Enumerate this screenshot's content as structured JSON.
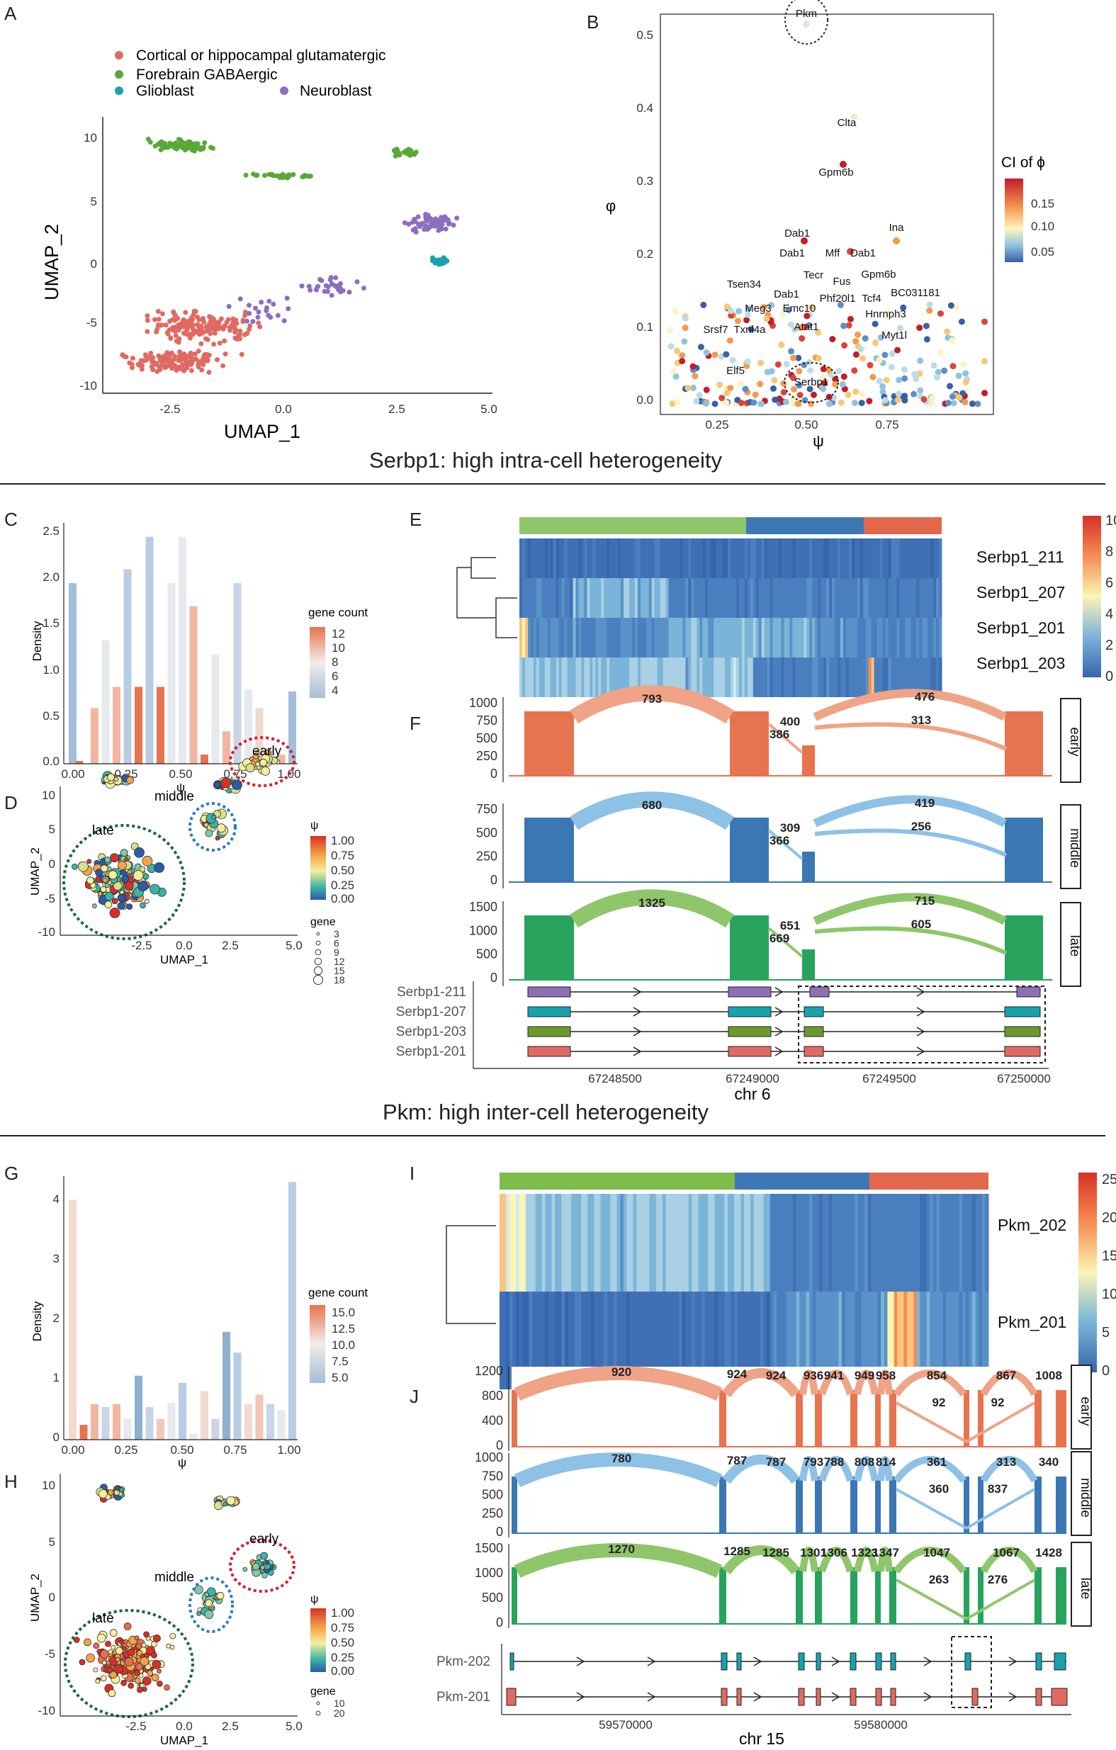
{
  "panels": {
    "A": {
      "letter": "A",
      "legend": [
        "Cortical or hippocampal glutamatergic",
        "Forebrain GABAergic",
        "Glioblast",
        "Neuroblast"
      ],
      "legend_colors": [
        "#e06a63",
        "#5aa838",
        "#17a3ae",
        "#8b6fbf"
      ],
      "xlabel": "UMAP_1",
      "ylabel": "UMAP_2",
      "xticks": [
        "-2.5",
        "0.0",
        "2.5",
        "5.0"
      ],
      "yticks": [
        "10",
        "5",
        "0",
        "-5",
        "-10"
      ]
    },
    "B": {
      "letter": "B",
      "xlabel": "ψ",
      "ylabel": "φ",
      "xticks": [
        "0.25",
        "0.50",
        "0.75"
      ],
      "yticks": [
        "0.5",
        "0.4",
        "0.3",
        "0.2",
        "0.1",
        "0.0"
      ],
      "legend_title": "CI of ϕ",
      "legend_ticks": [
        "0.15",
        "0.10",
        "0.05"
      ],
      "highlight": [
        "Pkm",
        "Serbp1"
      ],
      "labels": [
        "Clta",
        "Gpm6b",
        "Ina",
        "Dab1",
        "Mff",
        "Dab1",
        "Dab1",
        "Tecr",
        "Fus",
        "Gpm6b",
        "Tsen34",
        "BC031181",
        "Dab1",
        "Phf20l1",
        "Tcf4",
        "Meg3",
        "Emc10",
        "Hnrnph3",
        "Atat1",
        "Srsf7",
        "Txnl4a",
        "Myt1l",
        "Elf5"
      ]
    },
    "C": {
      "letter": "C",
      "xlabel": "ψ",
      "ylabel": "Density",
      "xticks": [
        "0.00",
        "0.25",
        "0.50",
        "0.75",
        "1.00"
      ],
      "yticks": [
        "2.5",
        "2.0",
        "1.5",
        "1.0",
        "0.5",
        "0.0"
      ],
      "legend_title": "gene count",
      "legend_ticks": [
        "12",
        "10",
        "8",
        "6",
        "4"
      ]
    },
    "D": {
      "letter": "D",
      "xlabel": "UMAP_1",
      "ylabel": "UMAP_2",
      "xticks": [
        "-2.5",
        "0.0",
        "2.5",
        "5.0"
      ],
      "yticks": [
        "10",
        "5",
        "0",
        "-5",
        "-10"
      ],
      "region_labels": [
        "early",
        "middle",
        "late"
      ],
      "psi_title": "ψ",
      "psi_ticks": [
        "1.00",
        "0.75",
        "0.50",
        "0.25",
        "0.00"
      ],
      "gene_title": "gene",
      "gene_sizes": [
        "3",
        "6",
        "9",
        "12",
        "15",
        "18"
      ]
    },
    "E": {
      "letter": "E",
      "rows": [
        "Serbp1_211",
        "Serbp1_207",
        "Serbp1_201",
        "Serbp1_203"
      ],
      "scale_ticks": [
        "10",
        "8",
        "6",
        "4",
        "2",
        "0"
      ]
    },
    "F": {
      "letter": "F",
      "facets": [
        {
          "label": "early",
          "yticks": [
            "1000",
            "750",
            "500",
            "250",
            "0"
          ],
          "nums": [
            "793",
            "400",
            "386",
            "476",
            "313"
          ]
        },
        {
          "label": "middle",
          "yticks": [
            "750",
            "500",
            "250",
            "0"
          ],
          "nums": [
            "680",
            "309",
            "366",
            "419",
            "256"
          ]
        },
        {
          "label": "late",
          "yticks": [
            "1500",
            "1000",
            "500",
            "0"
          ],
          "nums": [
            "1325",
            "651",
            "669",
            "715",
            "605"
          ]
        }
      ],
      "transcripts": [
        "Serbp1-211",
        "Serbp1-207",
        "Serbp1-203",
        "Serbp1-201"
      ],
      "xticks": [
        "67248500",
        "67249000",
        "67249500",
        "67250000"
      ],
      "xlabel": "chr 6"
    },
    "G": {
      "letter": "G",
      "xlabel": "ψ",
      "ylabel": "Density",
      "xticks": [
        "0.00",
        "0.25",
        "0.50",
        "0.75",
        "1.00"
      ],
      "yticks": [
        "4",
        "3",
        "2",
        "1",
        "0"
      ],
      "legend_title": "gene count",
      "legend_ticks": [
        "15.0",
        "12.5",
        "10.0",
        "7.5",
        "5.0"
      ]
    },
    "H": {
      "letter": "H",
      "xlabel": "UMAP_1",
      "ylabel": "UMAP_2",
      "xticks": [
        "-2.5",
        "0.0",
        "2.5",
        "5.0"
      ],
      "yticks": [
        "10",
        "5",
        "0",
        "-5",
        "-10"
      ],
      "region_labels": [
        "early",
        "middle",
        "late"
      ],
      "psi_title": "ψ",
      "psi_ticks": [
        "1.00",
        "0.75",
        "0.50",
        "0.25",
        "0.00"
      ],
      "gene_title": "gene",
      "gene_sizes": [
        "10",
        "20"
      ]
    },
    "I": {
      "letter": "I",
      "rows": [
        "Pkm_202",
        "Pkm_201"
      ],
      "scale_ticks": [
        "25",
        "20",
        "15",
        "10",
        "5",
        "0"
      ]
    },
    "J": {
      "letter": "J",
      "facets": [
        {
          "label": "early",
          "yticks": [
            "1200",
            "800",
            "400",
            "0"
          ],
          "nums": [
            "920",
            "924",
            "924",
            "936",
            "941",
            "949",
            "958",
            "854",
            "867",
            "1008",
            "92",
            "92"
          ]
        },
        {
          "label": "middle",
          "yticks": [
            "1000",
            "750",
            "500",
            "250",
            "0"
          ],
          "nums": [
            "780",
            "787",
            "787",
            "793",
            "788",
            "808",
            "814",
            "361",
            "313",
            "340",
            "360",
            "837"
          ]
        },
        {
          "label": "late",
          "yticks": [
            "1500",
            "1000",
            "500",
            "0"
          ],
          "nums": [
            "1270",
            "1285",
            "1285",
            "1301",
            "1306",
            "1323",
            "1347",
            "1047",
            "1067",
            "1428",
            "263",
            "276"
          ]
        }
      ],
      "transcripts": [
        "Pkm-202",
        "Pkm-201"
      ],
      "xticks": [
        "59570000",
        "59580000"
      ],
      "xlabel": "chr 15"
    }
  },
  "sections": {
    "serbp1": "Serbp1: high intra-cell heterogeneity",
    "pkm": "Pkm: high inter-cell heterogeneity"
  },
  "colors": {
    "red": "#e06a63",
    "green": "#5aa838",
    "teal": "#17a3ae",
    "purple": "#8b6fbf",
    "orange": "#e8734f",
    "blue": "#3b77b3",
    "dgreen": "#27a35d",
    "salmon": "#f0a386",
    "lblue": "#8ec1e6",
    "lgreen": "#8fc66b"
  }
}
